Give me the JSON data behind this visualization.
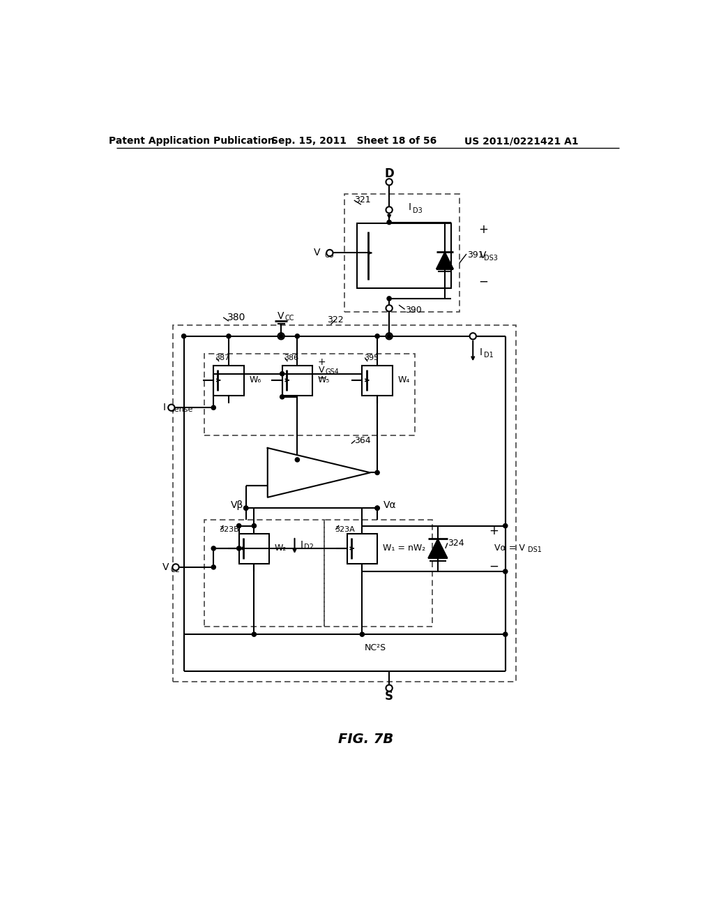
{
  "bg_color": "#ffffff",
  "header_left": "Patent Application Publication",
  "header_mid": "Sep. 15, 2011   Sheet 18 of 56",
  "header_right": "US 2011/0221421 A1",
  "fig_caption": "FIG. 7B"
}
